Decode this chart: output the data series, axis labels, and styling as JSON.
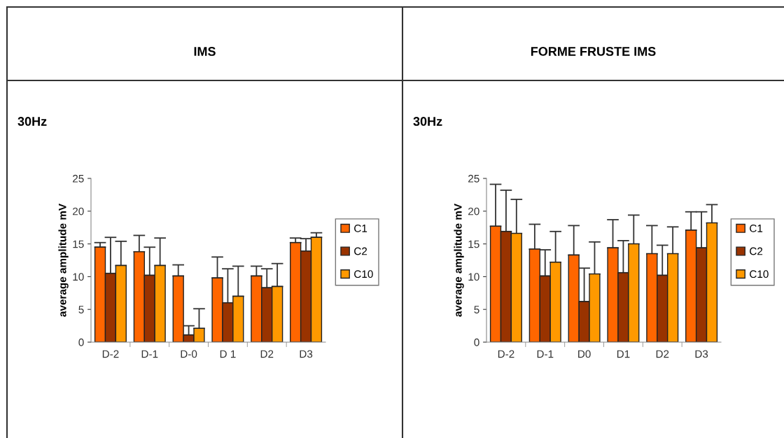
{
  "chart_data": [
    {
      "type": "bar",
      "title": "IMS",
      "subtitle": "30Hz",
      "ylabel": "average amplitude mV",
      "categories": [
        "D-2",
        "D-1",
        "D-0",
        "D 1",
        "D2",
        "D3"
      ],
      "series": [
        {
          "name": "C1",
          "color": "#ff6600",
          "values": [
            14.5,
            13.8,
            10.1,
            9.8,
            10.1,
            15.2
          ],
          "errors": [
            [
              14.5,
              15.2
            ],
            [
              13.8,
              16.3
            ],
            [
              10.1,
              11.8
            ],
            [
              9.8,
              13.0
            ],
            [
              10.1,
              11.6
            ],
            [
              15.2,
              15.9
            ]
          ]
        },
        {
          "name": "C2",
          "color": "#993300",
          "values": [
            10.5,
            10.2,
            1.1,
            6.0,
            8.3,
            13.9
          ],
          "errors": [
            [
              10.5,
              16.0
            ],
            [
              10.2,
              14.5
            ],
            [
              1.1,
              2.5
            ],
            [
              6.0,
              11.2
            ],
            [
              8.3,
              11.2
            ],
            [
              13.9,
              15.8
            ]
          ]
        },
        {
          "name": "C10",
          "color": "#ff9900",
          "values": [
            11.7,
            11.7,
            2.1,
            7.0,
            8.5,
            16.0
          ],
          "errors": [
            [
              11.7,
              15.4
            ],
            [
              11.7,
              15.9
            ],
            [
              2.1,
              5.1
            ],
            [
              7.0,
              11.6
            ],
            [
              8.5,
              12.0
            ],
            [
              16.0,
              16.7
            ]
          ]
        }
      ],
      "ylim": [
        0,
        25
      ],
      "yticks": [
        0,
        5,
        10,
        15,
        20,
        25
      ],
      "grid": false,
      "legend": "right"
    },
    {
      "type": "bar",
      "title": "FORME FRUSTE IMS",
      "subtitle": "30Hz",
      "ylabel": "average amplitude mV",
      "categories": [
        "D-2",
        "D-1",
        "D0",
        "D1",
        "D2",
        "D3"
      ],
      "series": [
        {
          "name": "C1",
          "color": "#ff6600",
          "values": [
            17.7,
            14.2,
            13.3,
            14.4,
            13.5,
            17.1
          ],
          "errors": [
            [
              17.7,
              24.1
            ],
            [
              14.2,
              18.0
            ],
            [
              13.3,
              17.8
            ],
            [
              14.4,
              18.7
            ],
            [
              13.5,
              17.8
            ],
            [
              17.1,
              19.9
            ]
          ]
        },
        {
          "name": "C2",
          "color": "#993300",
          "values": [
            16.9,
            10.1,
            6.2,
            10.6,
            10.2,
            14.4
          ],
          "errors": [
            [
              16.9,
              23.2
            ],
            [
              10.1,
              14.1
            ],
            [
              6.2,
              11.3
            ],
            [
              10.6,
              15.5
            ],
            [
              10.2,
              14.8
            ],
            [
              14.4,
              19.9
            ]
          ]
        },
        {
          "name": "C10",
          "color": "#ff9900",
          "values": [
            16.6,
            12.2,
            10.4,
            15.0,
            13.5,
            18.2
          ],
          "errors": [
            [
              16.6,
              21.8
            ],
            [
              12.2,
              16.9
            ],
            [
              10.4,
              15.3
            ],
            [
              15.0,
              19.4
            ],
            [
              13.5,
              17.6
            ],
            [
              18.2,
              21.0
            ]
          ]
        }
      ],
      "ylim": [
        0,
        25
      ],
      "yticks": [
        0,
        5,
        10,
        15,
        20,
        25
      ],
      "grid": false,
      "legend": "right"
    }
  ]
}
